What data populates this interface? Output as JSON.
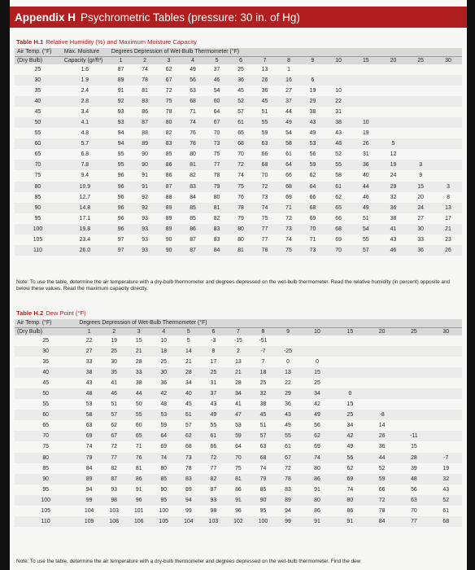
{
  "header": {
    "tag": "Appendix H",
    "title": "Psychrometric Tables (pressure: 30 in. of Hg)"
  },
  "table1": {
    "label": "Table H.1",
    "title": "Relative Humidity (%) and Maximum Moisture Capacity",
    "h1": [
      "Air Temp. (°F)",
      "Max. Moisture",
      "Degrees Depression of Wet-Bulb Thermometer (°F)"
    ],
    "h2": [
      "(Dry Bulb)",
      "Capacity (gr/ft³)"
    ],
    "cols": [
      "1",
      "2",
      "3",
      "4",
      "5",
      "6",
      "7",
      "8",
      "9",
      "10",
      "15",
      "20",
      "25",
      "30"
    ],
    "rows": [
      [
        "25",
        "1.6",
        "87",
        "74",
        "62",
        "49",
        "37",
        "25",
        "13",
        "1",
        "",
        "",
        "",
        "",
        "",
        ""
      ],
      [
        "30",
        "1.9",
        "89",
        "78",
        "67",
        "56",
        "46",
        "36",
        "26",
        "16",
        "6",
        "",
        "",
        "",
        "",
        ""
      ],
      [
        "35",
        "2.4",
        "91",
        "81",
        "72",
        "63",
        "54",
        "45",
        "36",
        "27",
        "19",
        "10",
        "",
        "",
        "",
        ""
      ],
      [
        "40",
        "2.8",
        "92",
        "83",
        "75",
        "68",
        "60",
        "52",
        "45",
        "37",
        "29",
        "22",
        "",
        "",
        "",
        ""
      ],
      [
        "45",
        "3.4",
        "93",
        "86",
        "78",
        "71",
        "64",
        "57",
        "51",
        "44",
        "38",
        "31",
        "",
        "",
        "",
        ""
      ],
      [
        "50",
        "4.1",
        "93",
        "87",
        "80",
        "74",
        "67",
        "61",
        "55",
        "49",
        "43",
        "38",
        "10",
        "",
        "",
        ""
      ],
      [
        "55",
        "4.8",
        "94",
        "88",
        "82",
        "76",
        "70",
        "65",
        "59",
        "54",
        "49",
        "43",
        "19",
        "",
        "",
        ""
      ],
      [
        "60",
        "5.7",
        "94",
        "89",
        "83",
        "78",
        "73",
        "68",
        "63",
        "58",
        "53",
        "48",
        "26",
        "5",
        "",
        ""
      ],
      [
        "65",
        "6.8",
        "95",
        "90",
        "85",
        "80",
        "75",
        "70",
        "66",
        "61",
        "56",
        "52",
        "31",
        "12",
        "",
        ""
      ],
      [
        "70",
        "7.8",
        "95",
        "90",
        "86",
        "81",
        "77",
        "72",
        "68",
        "64",
        "59",
        "55",
        "36",
        "19",
        "3",
        ""
      ],
      [
        "75",
        "9.4",
        "96",
        "91",
        "86",
        "82",
        "78",
        "74",
        "70",
        "66",
        "62",
        "58",
        "40",
        "24",
        "9",
        ""
      ],
      [
        "80",
        "10.9",
        "96",
        "91",
        "87",
        "83",
        "79",
        "75",
        "72",
        "68",
        "64",
        "61",
        "44",
        "29",
        "15",
        "3"
      ],
      [
        "85",
        "12.7",
        "96",
        "92",
        "88",
        "84",
        "80",
        "76",
        "73",
        "69",
        "66",
        "62",
        "46",
        "32",
        "20",
        "8"
      ],
      [
        "90",
        "14.8",
        "96",
        "92",
        "89",
        "85",
        "81",
        "78",
        "74",
        "71",
        "68",
        "65",
        "49",
        "36",
        "24",
        "13"
      ],
      [
        "95",
        "17.1",
        "96",
        "93",
        "89",
        "85",
        "82",
        "79",
        "75",
        "72",
        "69",
        "66",
        "51",
        "38",
        "27",
        "17"
      ],
      [
        "100",
        "19.8",
        "96",
        "93",
        "89",
        "86",
        "83",
        "80",
        "77",
        "73",
        "70",
        "68",
        "54",
        "41",
        "30",
        "21"
      ],
      [
        "105",
        "23.4",
        "97",
        "93",
        "90",
        "87",
        "83",
        "80",
        "77",
        "74",
        "71",
        "69",
        "55",
        "43",
        "33",
        "23"
      ],
      [
        "110",
        "26.0",
        "97",
        "93",
        "90",
        "87",
        "84",
        "81",
        "78",
        "75",
        "73",
        "70",
        "57",
        "46",
        "36",
        "26"
      ]
    ],
    "note": "Note: To use the table, determine the air temperature with a dry-bulb thermometer and degrees depressed on the wet-bulb thermometer. Read the relative humidity (in percent) opposite and below these values. Read the maximum capacity directly."
  },
  "table2": {
    "label": "Table H.2",
    "title": "Dew Point (°F)",
    "h1": [
      "Air Temp. (°F)",
      "Degrees Depression of Wet-Bulb Thermometer (°F)"
    ],
    "h2": [
      "(Dry Bulb)"
    ],
    "cols": [
      "1",
      "2",
      "3",
      "4",
      "5",
      "6",
      "7",
      "8",
      "9",
      "10",
      "15",
      "20",
      "25",
      "30"
    ],
    "rows": [
      [
        "25",
        "22",
        "19",
        "15",
        "10",
        "5",
        "-3",
        "-15",
        "-51",
        "",
        "",
        "",
        "",
        "",
        ""
      ],
      [
        "30",
        "27",
        "25",
        "21",
        "18",
        "14",
        "8",
        "2",
        "-7",
        "-25",
        "",
        "",
        "",
        "",
        ""
      ],
      [
        "35",
        "33",
        "30",
        "28",
        "25",
        "21",
        "17",
        "13",
        "7",
        "0",
        "0",
        "",
        "",
        "",
        ""
      ],
      [
        "40",
        "38",
        "35",
        "33",
        "30",
        "28",
        "25",
        "21",
        "18",
        "13",
        "15",
        "",
        "",
        "",
        ""
      ],
      [
        "45",
        "43",
        "41",
        "38",
        "36",
        "34",
        "31",
        "28",
        "25",
        "22",
        "25",
        "",
        "",
        "",
        ""
      ],
      [
        "50",
        "48",
        "46",
        "44",
        "42",
        "40",
        "37",
        "34",
        "32",
        "29",
        "34",
        "0",
        "",
        "",
        ""
      ],
      [
        "55",
        "53",
        "51",
        "50",
        "48",
        "45",
        "43",
        "41",
        "38",
        "36",
        "42",
        "15",
        "",
        "",
        ""
      ],
      [
        "60",
        "58",
        "57",
        "55",
        "53",
        "51",
        "49",
        "47",
        "45",
        "43",
        "49",
        "25",
        "-8",
        "",
        ""
      ],
      [
        "65",
        "63",
        "62",
        "60",
        "59",
        "57",
        "55",
        "53",
        "51",
        "49",
        "56",
        "34",
        "14",
        "",
        ""
      ],
      [
        "70",
        "69",
        "67",
        "65",
        "64",
        "62",
        "61",
        "59",
        "57",
        "55",
        "62",
        "42",
        "26",
        "-11",
        ""
      ],
      [
        "75",
        "74",
        "72",
        "71",
        "69",
        "68",
        "66",
        "64",
        "63",
        "61",
        "69",
        "49",
        "36",
        "15",
        ""
      ],
      [
        "80",
        "79",
        "77",
        "76",
        "74",
        "73",
        "72",
        "70",
        "68",
        "67",
        "74",
        "56",
        "44",
        "28",
        "-7"
      ],
      [
        "85",
        "84",
        "82",
        "81",
        "80",
        "78",
        "77",
        "75",
        "74",
        "72",
        "80",
        "62",
        "52",
        "39",
        "19"
      ],
      [
        "90",
        "89",
        "87",
        "86",
        "85",
        "83",
        "82",
        "81",
        "79",
        "78",
        "86",
        "69",
        "59",
        "48",
        "32"
      ],
      [
        "95",
        "94",
        "93",
        "91",
        "90",
        "89",
        "87",
        "86",
        "85",
        "83",
        "91",
        "74",
        "66",
        "56",
        "43"
      ],
      [
        "100",
        "99",
        "98",
        "96",
        "95",
        "94",
        "93",
        "91",
        "90",
        "89",
        "80",
        "80",
        "72",
        "63",
        "52"
      ],
      [
        "105",
        "104",
        "103",
        "101",
        "100",
        "99",
        "98",
        "96",
        "95",
        "94",
        "86",
        "86",
        "78",
        "70",
        "61"
      ],
      [
        "110",
        "109",
        "108",
        "106",
        "105",
        "104",
        "103",
        "102",
        "100",
        "99",
        "91",
        "91",
        "84",
        "77",
        "68"
      ]
    ],
    "note": "Note: To use the table, determine the air temperature with a dry-bulb thermometer and degrees depressed on the wet-bulb thermometer. Find the dew"
  }
}
